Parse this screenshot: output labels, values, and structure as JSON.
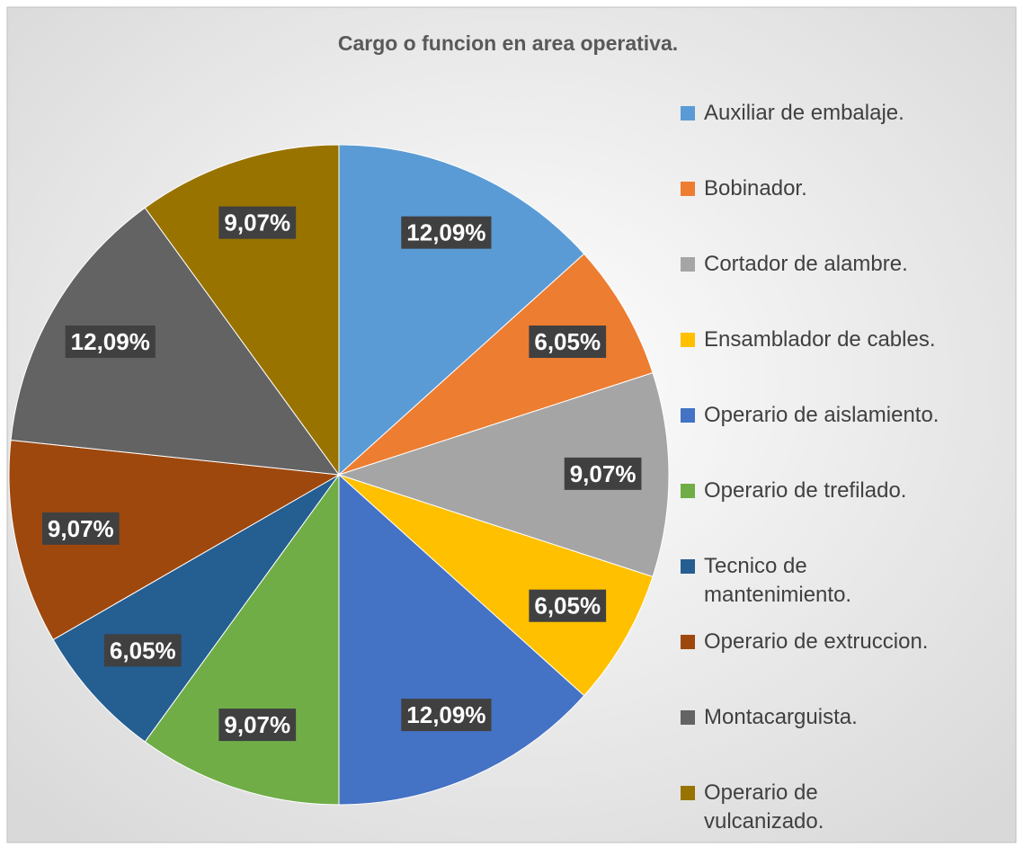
{
  "chart_data": {
    "type": "pie",
    "title": "Cargo o funcion en area operativa.",
    "categories": [
      "Auxiliar de embalaje.",
      "Bobinador.",
      "Cortador de alambre.",
      "Ensamblador de cables.",
      "Operario de aislamiento.",
      "Operario de trefilado.",
      "Tecnico de mantenimiento.",
      "Operario de extruccion.",
      "Montacarguista.",
      "Operario de vulcanizado."
    ],
    "values": [
      12.09,
      6.05,
      9.07,
      6.05,
      12.09,
      9.07,
      6.05,
      9.07,
      12.09,
      9.07
    ],
    "value_labels": [
      "12,09%",
      "6,05%",
      "9,07%",
      "6,05%",
      "12,09%",
      "9,07%",
      "6,05%",
      "9,07%",
      "12,09%",
      "9,07%"
    ],
    "colors": [
      "#5b9bd5",
      "#ed7d31",
      "#a5a5a5",
      "#ffc000",
      "#4472c4",
      "#70ad47",
      "#255e91",
      "#9e480e",
      "#636363",
      "#997300"
    ],
    "legend": "right"
  }
}
